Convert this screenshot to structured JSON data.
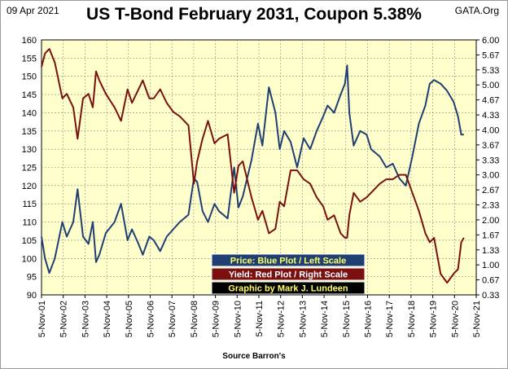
{
  "header": {
    "date": "09 Apr 2021",
    "title": "US T-Bond February 2031, Coupon 5.38%",
    "site": "GATA.Org"
  },
  "footer": {
    "source": "Source Barron's"
  },
  "colors": {
    "plot_bg": "#ffffcc",
    "price": "#1f3f73",
    "yield": "#7a1010",
    "legend_price_bg": "#1f3f73",
    "legend_price_text": "#ffff66",
    "legend_yield_bg": "#7a1010",
    "legend_yield_text": "#ffffff",
    "legend_credit_bg": "#000000",
    "legend_credit_text": "#ffff66"
  },
  "legend": [
    {
      "text": "Price:  Blue Plot / Left Scale"
    },
    {
      "text": "Yield:  Red Plot / Right Scale"
    },
    {
      "text": "Graphic by Mark J. Lundeen"
    }
  ],
  "chart_data": {
    "type": "line",
    "x_unit": "year",
    "xlim": [
      2001.84,
      2021.84
    ],
    "x_ticks": [
      "5-Nov-01",
      "5-Nov-02",
      "5-Nov-03",
      "5-Nov-04",
      "5-Nov-05",
      "5-Nov-06",
      "5-Nov-07",
      "5-Nov-08",
      "5-Nov-09",
      "5-Nov-10",
      "5-Nov-11",
      "5-Nov-12",
      "5-Nov-13",
      "5-Nov-14",
      "5-Nov-15",
      "5-Nov-16",
      "5-Nov-17",
      "5-Nov-18",
      "5-Nov-19",
      "5-Nov-20",
      "5-Nov-21"
    ],
    "y_left_ticks": [
      "90",
      "95",
      "100",
      "105",
      "110",
      "115",
      "120",
      "125",
      "130",
      "135",
      "140",
      "145",
      "150",
      "155",
      "160"
    ],
    "y_right_ticks": [
      "0.33",
      "0.67",
      "1.00",
      "1.33",
      "1.67",
      "2.00",
      "2.33",
      "2.67",
      "3.00",
      "3.33",
      "3.67",
      "4.00",
      "4.33",
      "4.67",
      "5.00",
      "5.33",
      "5.67",
      "6.00"
    ],
    "ylim_left": [
      90,
      160
    ],
    "ylim_right": [
      0.33,
      6.0
    ],
    "grid": true,
    "legend_position": "bottom-center",
    "series": [
      {
        "axis": "left",
        "color": "#1f3f73",
        "points": [
          [
            2001.84,
            106
          ],
          [
            2002.0,
            100
          ],
          [
            2002.2,
            96
          ],
          [
            2002.45,
            100
          ],
          [
            2002.8,
            110
          ],
          [
            2003.0,
            106
          ],
          [
            2003.3,
            110
          ],
          [
            2003.5,
            119
          ],
          [
            2003.75,
            106
          ],
          [
            2004.0,
            104
          ],
          [
            2004.2,
            110
          ],
          [
            2004.35,
            99
          ],
          [
            2004.5,
            101
          ],
          [
            2004.8,
            107
          ],
          [
            2005.2,
            110
          ],
          [
            2005.5,
            115
          ],
          [
            2005.8,
            105
          ],
          [
            2006.0,
            108
          ],
          [
            2006.3,
            104
          ],
          [
            2006.5,
            101
          ],
          [
            2006.8,
            106
          ],
          [
            2007.0,
            105
          ],
          [
            2007.3,
            102
          ],
          [
            2007.6,
            106
          ],
          [
            2007.9,
            108
          ],
          [
            2008.2,
            110
          ],
          [
            2008.6,
            112
          ],
          [
            2008.85,
            122
          ],
          [
            2009.0,
            121
          ],
          [
            2009.25,
            113
          ],
          [
            2009.5,
            110
          ],
          [
            2009.8,
            115
          ],
          [
            2010.0,
            113
          ],
          [
            2010.4,
            111
          ],
          [
            2010.7,
            125
          ],
          [
            2010.9,
            114
          ],
          [
            2011.1,
            117
          ],
          [
            2011.5,
            127
          ],
          [
            2011.8,
            137
          ],
          [
            2012.0,
            131
          ],
          [
            2012.3,
            147
          ],
          [
            2012.6,
            140
          ],
          [
            2012.8,
            130
          ],
          [
            2013.0,
            135
          ],
          [
            2013.3,
            132
          ],
          [
            2013.6,
            125
          ],
          [
            2013.9,
            133
          ],
          [
            2014.2,
            130
          ],
          [
            2014.5,
            135
          ],
          [
            2014.8,
            139
          ],
          [
            2015.0,
            142
          ],
          [
            2015.3,
            140
          ],
          [
            2015.6,
            145
          ],
          [
            2015.8,
            148
          ],
          [
            2015.9,
            153
          ],
          [
            2016.0,
            140
          ],
          [
            2016.2,
            131
          ],
          [
            2016.5,
            135
          ],
          [
            2016.8,
            134
          ],
          [
            2017.0,
            130
          ],
          [
            2017.4,
            128
          ],
          [
            2017.7,
            125
          ],
          [
            2018.0,
            126
          ],
          [
            2018.3,
            122
          ],
          [
            2018.6,
            120
          ],
          [
            2018.9,
            128
          ],
          [
            2019.2,
            137
          ],
          [
            2019.5,
            142
          ],
          [
            2019.7,
            148
          ],
          [
            2019.9,
            149
          ],
          [
            2020.2,
            148
          ],
          [
            2020.5,
            146
          ],
          [
            2020.8,
            143
          ],
          [
            2021.0,
            139
          ],
          [
            2021.15,
            134
          ],
          [
            2021.27,
            134
          ]
        ]
      },
      {
        "axis": "right",
        "color": "#7a1010",
        "points": [
          [
            2001.84,
            5.4
          ],
          [
            2002.0,
            5.7
          ],
          [
            2002.2,
            5.8
          ],
          [
            2002.45,
            5.5
          ],
          [
            2002.8,
            4.7
          ],
          [
            2003.0,
            4.8
          ],
          [
            2003.3,
            4.5
          ],
          [
            2003.5,
            3.8
          ],
          [
            2003.75,
            4.7
          ],
          [
            2004.0,
            4.8
          ],
          [
            2004.2,
            4.5
          ],
          [
            2004.35,
            5.3
          ],
          [
            2004.5,
            5.1
          ],
          [
            2004.8,
            4.8
          ],
          [
            2005.2,
            4.5
          ],
          [
            2005.5,
            4.2
          ],
          [
            2005.8,
            4.9
          ],
          [
            2006.0,
            4.6
          ],
          [
            2006.3,
            4.9
          ],
          [
            2006.5,
            5.1
          ],
          [
            2006.8,
            4.7
          ],
          [
            2007.0,
            4.7
          ],
          [
            2007.3,
            4.9
          ],
          [
            2007.6,
            4.6
          ],
          [
            2007.9,
            4.4
          ],
          [
            2008.2,
            4.3
          ],
          [
            2008.6,
            4.1
          ],
          [
            2008.85,
            2.8
          ],
          [
            2009.0,
            3.3
          ],
          [
            2009.25,
            3.8
          ],
          [
            2009.5,
            4.2
          ],
          [
            2009.8,
            3.7
          ],
          [
            2010.0,
            3.8
          ],
          [
            2010.4,
            3.9
          ],
          [
            2010.7,
            2.6
          ],
          [
            2010.9,
            3.2
          ],
          [
            2011.1,
            3.3
          ],
          [
            2011.5,
            2.5
          ],
          [
            2011.8,
            2.0
          ],
          [
            2012.0,
            2.2
          ],
          [
            2012.3,
            1.7
          ],
          [
            2012.6,
            1.8
          ],
          [
            2012.8,
            2.4
          ],
          [
            2013.0,
            2.3
          ],
          [
            2013.3,
            3.1
          ],
          [
            2013.6,
            3.1
          ],
          [
            2013.9,
            2.9
          ],
          [
            2014.2,
            2.8
          ],
          [
            2014.5,
            2.5
          ],
          [
            2014.8,
            2.3
          ],
          [
            2015.0,
            2.0
          ],
          [
            2015.3,
            2.1
          ],
          [
            2015.6,
            1.7
          ],
          [
            2015.8,
            1.6
          ],
          [
            2015.9,
            1.6
          ],
          [
            2016.0,
            2.1
          ],
          [
            2016.2,
            2.6
          ],
          [
            2016.5,
            2.4
          ],
          [
            2016.8,
            2.5
          ],
          [
            2017.0,
            2.6
          ],
          [
            2017.4,
            2.8
          ],
          [
            2017.7,
            2.9
          ],
          [
            2018.0,
            2.9
          ],
          [
            2018.3,
            3.0
          ],
          [
            2018.6,
            3.0
          ],
          [
            2018.9,
            2.6
          ],
          [
            2019.2,
            2.2
          ],
          [
            2019.5,
            1.7
          ],
          [
            2019.7,
            1.5
          ],
          [
            2019.9,
            1.6
          ],
          [
            2020.2,
            0.8
          ],
          [
            2020.5,
            0.6
          ],
          [
            2020.8,
            0.8
          ],
          [
            2021.0,
            0.9
          ],
          [
            2021.15,
            1.5
          ],
          [
            2021.27,
            1.6
          ]
        ]
      }
    ]
  }
}
